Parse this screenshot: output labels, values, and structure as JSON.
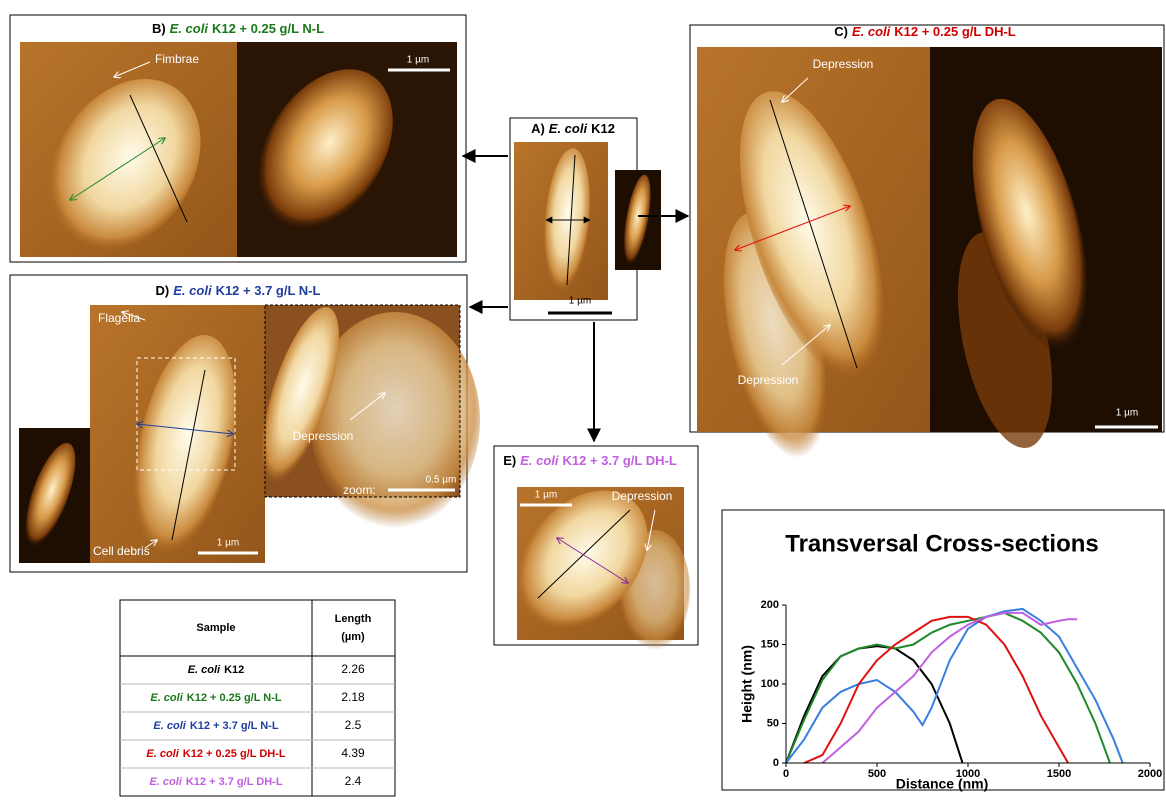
{
  "panels": [
    {
      "letter": "A)",
      "species": "E. coli",
      "strain": "K12",
      "color": "#000000",
      "annotations": [],
      "scale_bars": [
        "1 µm"
      ]
    },
    {
      "letter": "B)",
      "species": "E. coli",
      "strain": "K12 + 0.25 g/L N-L",
      "color": "#1a7a1a",
      "annotations": [
        "Fimbrae"
      ],
      "scale_bars": [
        "1 µm"
      ]
    },
    {
      "letter": "C)",
      "species": "E. coli",
      "strain": "K12 + 0.25 g/L DH-L",
      "color": "#d00000",
      "annotations": [
        "Depression",
        "Depression"
      ],
      "scale_bars": [
        "1 µm"
      ]
    },
    {
      "letter": "D)",
      "species": "E. coli",
      "strain": "K12 + 3.7 g/L N-L",
      "color": "#1f3f9f",
      "annotations": [
        "Flagella",
        "Cell debris",
        "Depression",
        "zoom:"
      ],
      "scale_bars": [
        "1 µm",
        "0.5 µm"
      ]
    },
    {
      "letter": "E)",
      "species": "E. coli",
      "strain": "K12 + 3.7 g/L DH-L",
      "color": "#c05fe0",
      "annotations": [
        "Depression"
      ],
      "scale_bars": [
        "1 µm"
      ]
    }
  ],
  "table": {
    "header": {
      "sample": "Sample",
      "length": [
        "Length",
        "(µm)"
      ]
    },
    "rows": [
      {
        "species": "E. coli",
        "strain": "K12",
        "length": 2.26,
        "color": "#000000"
      },
      {
        "species": "E. coli",
        "strain": "K12 + 0.25 g/L N-L",
        "length": 2.18,
        "color": "#1a7a1a"
      },
      {
        "species": "E. coli",
        "strain": "K12 + 3.7 g/L N-L",
        "length": 2.5,
        "color": "#1f3f9f"
      },
      {
        "species": "E. coli",
        "strain": "K12 + 0.25 g/L DH-L",
        "length": 4.39,
        "color": "#d00000"
      },
      {
        "species": "E. coli",
        "strain": "K12 + 3.7 g/L DH-L",
        "length": 2.4,
        "color": "#c05fe0"
      }
    ]
  },
  "chart_data": {
    "type": "line",
    "title": "Transversal Cross-sections",
    "x_label": "Distance (nm)",
    "y_label": "Height (nm)",
    "xlim": [
      0,
      2000
    ],
    "xticks": [
      0,
      500,
      1000,
      1500,
      2000
    ],
    "ylim": [
      0,
      200
    ],
    "yticks": [
      0,
      50,
      100,
      150,
      200
    ],
    "series": [
      {
        "color": "#000000",
        "x": [
          0,
          100,
          200,
          300,
          400,
          500,
          600,
          700,
          800,
          900,
          970
        ],
        "values": [
          0,
          60,
          110,
          135,
          145,
          148,
          145,
          130,
          100,
          50,
          0
        ]
      },
      {
        "color": "#1e8a2a",
        "x": [
          0,
          100,
          200,
          300,
          400,
          500,
          600,
          700,
          800,
          900,
          1000,
          1100,
          1200,
          1300,
          1400,
          1500,
          1600,
          1700,
          1780
        ],
        "values": [
          0,
          55,
          105,
          135,
          145,
          150,
          145,
          150,
          165,
          175,
          180,
          185,
          190,
          180,
          165,
          140,
          100,
          50,
          0
        ]
      },
      {
        "color": "#3a7fe0",
        "x": [
          0,
          100,
          200,
          300,
          400,
          500,
          600,
          700,
          750,
          800,
          900,
          1000,
          1100,
          1200,
          1300,
          1400,
          1500,
          1600,
          1700,
          1800,
          1850
        ],
        "values": [
          0,
          30,
          70,
          90,
          100,
          105,
          90,
          65,
          48,
          70,
          130,
          170,
          185,
          192,
          195,
          180,
          160,
          120,
          80,
          30,
          0
        ]
      },
      {
        "color": "#e01010",
        "x": [
          100,
          200,
          300,
          400,
          500,
          600,
          700,
          800,
          900,
          1000,
          1100,
          1200,
          1300,
          1400,
          1500,
          1550
        ],
        "values": [
          0,
          10,
          50,
          100,
          130,
          150,
          165,
          180,
          185,
          185,
          175,
          150,
          110,
          60,
          20,
          0
        ]
      },
      {
        "color": "#c060e0",
        "x": [
          200,
          300,
          400,
          500,
          600,
          700,
          800,
          900,
          1000,
          1100,
          1200,
          1300,
          1400,
          1500,
          1550,
          1600
        ],
        "values": [
          0,
          20,
          40,
          70,
          90,
          110,
          140,
          160,
          175,
          185,
          190,
          190,
          175,
          180,
          182,
          182
        ]
      }
    ]
  }
}
